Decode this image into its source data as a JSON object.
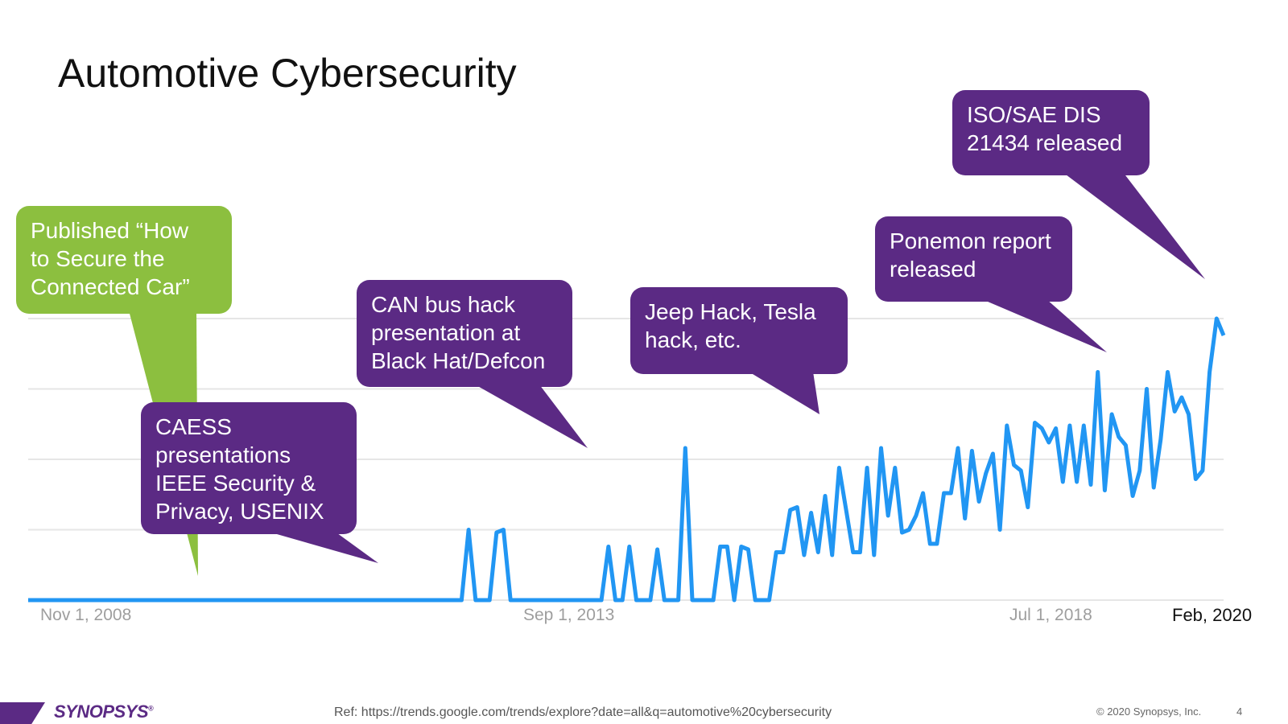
{
  "slide": {
    "title": "Automotive Cybersecurity",
    "footer": {
      "logo": "SYNOPSYS",
      "logo_mark": "®",
      "ref": "Ref: https://trends.google.com/trends/explore?date=all&q=automotive%20cybersecurity",
      "copyright": "© 2020 Synopsys, Inc.",
      "page_number": "4"
    },
    "colors": {
      "purple": "#5b2a84",
      "green": "#8cbf3f",
      "line": "#2196f3",
      "grid": "#e6e6e6",
      "tick_text": "#9e9e9e"
    }
  },
  "callouts": [
    {
      "id": "connected-car",
      "color": "green",
      "lines": [
        "Published “How",
        "to Secure the",
        "Connected Car”"
      ]
    },
    {
      "id": "caess",
      "color": "purple",
      "lines": [
        "CAESS",
        "presentations",
        "IEEE Security &",
        "Privacy, USENIX"
      ]
    },
    {
      "id": "can-bus",
      "color": "purple",
      "lines": [
        "CAN bus hack",
        "presentation at",
        "Black Hat/Defcon"
      ]
    },
    {
      "id": "jeep-tesla",
      "color": "purple",
      "lines": [
        "Jeep Hack, Tesla",
        "hack, etc."
      ]
    },
    {
      "id": "ponemon",
      "color": "purple",
      "lines": [
        "Ponemon report",
        "released"
      ]
    },
    {
      "id": "iso-sae",
      "color": "purple",
      "lines": [
        "ISO/SAE DIS",
        "21434 released"
      ]
    }
  ],
  "chart_data": {
    "type": "line",
    "title": "",
    "xlabel": "",
    "ylabel": "",
    "ylim": [
      0,
      100
    ],
    "grid": true,
    "x_tick_labels": [
      "Nov 1, 2008",
      "Sep 1, 2013",
      "Jul 1, 2018"
    ],
    "end_label": "Feb, 2020",
    "series": [
      {
        "values": [
          0,
          0,
          0,
          0,
          0,
          0,
          0,
          0,
          0,
          0,
          0,
          0,
          0,
          0,
          0,
          0,
          0,
          0,
          0,
          0,
          0,
          0,
          0,
          0,
          0,
          0,
          0,
          0,
          0,
          0,
          0,
          0,
          0,
          0,
          0,
          0,
          0,
          0,
          0,
          0,
          0,
          0,
          0,
          0,
          0,
          0,
          0,
          0,
          0,
          0,
          0,
          0,
          0,
          0,
          0,
          0,
          0,
          0,
          0,
          0,
          0,
          0,
          0,
          25,
          0,
          0,
          0,
          24,
          25,
          0,
          0,
          0,
          0,
          0,
          0,
          0,
          0,
          0,
          0,
          0,
          0,
          0,
          0,
          19,
          0,
          0,
          19,
          0,
          0,
          0,
          18,
          0,
          0,
          0,
          54,
          0,
          0,
          0,
          0,
          19,
          19,
          0,
          19,
          18,
          0,
          0,
          0,
          17,
          17,
          32,
          33,
          16,
          31,
          17,
          37,
          16,
          47,
          32,
          17,
          17,
          47,
          16,
          54,
          30,
          47,
          24,
          25,
          30,
          38,
          20,
          20,
          38,
          38,
          54,
          29,
          53,
          35,
          45,
          52,
          25,
          62,
          48,
          46,
          33,
          63,
          61,
          56,
          61,
          42,
          62,
          42,
          62,
          41,
          81,
          39,
          66,
          58,
          55,
          37,
          46,
          75,
          40,
          57,
          81,
          67,
          72,
          66,
          43,
          46,
          81,
          100,
          94
        ]
      }
    ]
  }
}
